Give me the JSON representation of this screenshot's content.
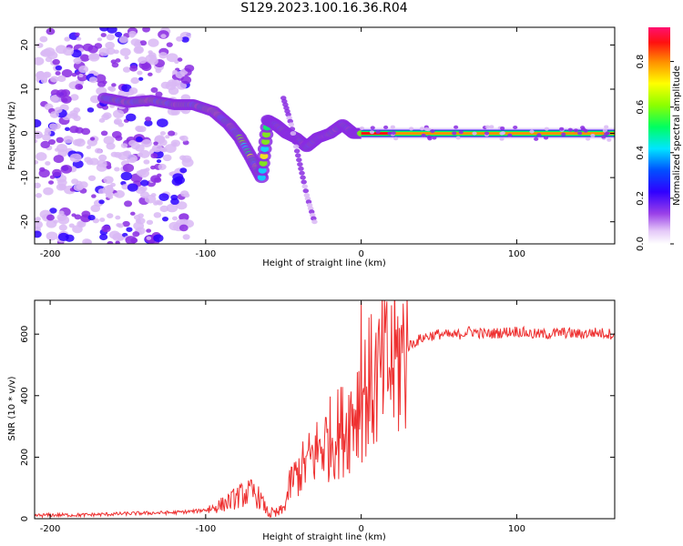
{
  "figure_title": "S129.2023.100.16.36.R04",
  "chart_data": [
    {
      "type": "heatmap",
      "title": "",
      "xlabel": "Height of straight line (km)",
      "ylabel": "Frequency (Hz)",
      "xlim": [
        -210,
        163
      ],
      "ylim": [
        -25,
        24
      ],
      "x_ticks": [
        -200,
        -100,
        0,
        100
      ],
      "y_ticks": [
        -20,
        -10,
        0,
        10,
        20
      ],
      "colorbar": {
        "label": "Normalized spectral amplitude",
        "range": [
          0,
          0.95
        ],
        "ticks": [
          "0.0",
          "0.2",
          "0.4",
          "0.6",
          "0.8"
        ],
        "colors": [
          "#ffffff",
          "#d9b8f5",
          "#8a2be2",
          "#2a00ff",
          "#0050ff",
          "#00e5ff",
          "#00ff60",
          "#7cff00",
          "#ffff00",
          "#ff9000",
          "#ff1010",
          "#ff1070"
        ]
      },
      "features": {
        "noise_band_x": [
          -210,
          -110
        ],
        "ridge": {
          "x": [
            -165,
            -150,
            -135,
            -120,
            -108,
            -95,
            -85,
            -78,
            -70,
            -64,
            -60,
            -55,
            -48,
            -42,
            -35,
            -28,
            -20,
            -12,
            -5,
            0
          ],
          "y": [
            8,
            7,
            7.5,
            6.5,
            6.5,
            5,
            2,
            -1,
            -6,
            -10,
            3,
            2,
            0,
            -1,
            -3,
            -1,
            0,
            2,
            0,
            0
          ]
        },
        "secondary_streak": {
          "x": [
            -50,
            -45,
            -40,
            -35,
            -30
          ],
          "y": [
            8,
            2,
            -6,
            -14,
            -20
          ]
        },
        "steady_line": {
          "x_range": [
            0,
            163
          ],
          "frequency": 0
        }
      }
    },
    {
      "type": "line",
      "title": "",
      "xlabel": "Height of straight line (km)",
      "ylabel": "SNR (10 * v/v)",
      "xlim": [
        -210,
        163
      ],
      "ylim": [
        0,
        710
      ],
      "x_ticks": [
        -200,
        -100,
        0,
        100
      ],
      "y_ticks": [
        0,
        200,
        400,
        600
      ],
      "color": "#ee3030",
      "x": [
        -210,
        -200,
        -180,
        -160,
        -140,
        -120,
        -105,
        -95,
        -90,
        -85,
        -80,
        -75,
        -70,
        -65,
        -60,
        -55,
        -50,
        -45,
        -40,
        -35,
        -30,
        -25,
        -20,
        -15,
        -10,
        -5,
        0,
        5,
        10,
        15,
        20,
        25,
        30,
        40,
        50,
        60,
        70,
        80,
        90,
        100,
        110,
        120,
        130,
        140,
        150,
        163
      ],
      "values": [
        10,
        12,
        12,
        15,
        18,
        20,
        25,
        35,
        45,
        55,
        70,
        80,
        85,
        65,
        20,
        15,
        30,
        120,
        150,
        180,
        210,
        240,
        260,
        280,
        300,
        350,
        400,
        430,
        450,
        480,
        500,
        520,
        560,
        590,
        600,
        595,
        610,
        600,
        605,
        610,
        600,
        600,
        605,
        600,
        605,
        600
      ]
    }
  ]
}
